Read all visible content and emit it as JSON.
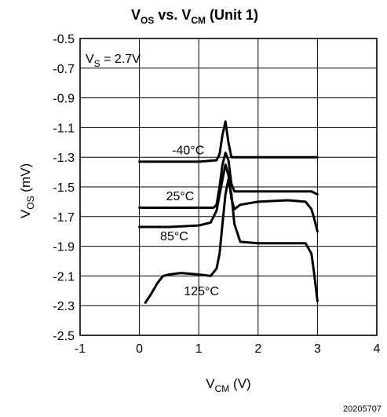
{
  "chart_data": {
    "type": "line",
    "title": {
      "v": "V",
      "v_sub": "OS",
      "mid": " vs. V",
      "cm_sub": "CM",
      "rest": " (Unit 1)"
    },
    "xlabel": {
      "main": "V",
      "sub": "CM",
      "unit": " (V)"
    },
    "ylabel": {
      "main": "V",
      "sub": "OS",
      "unit": " (mV)"
    },
    "xlim": [
      -1,
      4
    ],
    "ylim": [
      -2.5,
      -0.5
    ],
    "xticks": [
      -1,
      0,
      1,
      2,
      3,
      4
    ],
    "yticks": [
      -0.5,
      -0.7,
      -0.9,
      -1.1,
      -1.3,
      -1.5,
      -1.7,
      -1.9,
      -2.1,
      -2.3,
      -2.5
    ],
    "grid": true,
    "annotation": {
      "main": "V",
      "sub": "S",
      "rest": " = 2.7V"
    },
    "series": [
      {
        "name": "-40°C",
        "label_at": [
          0.55,
          -1.28
        ],
        "x": [
          0,
          1.0,
          1.3,
          1.35,
          1.4,
          1.45,
          1.5,
          1.55,
          1.6,
          2.0,
          2.5,
          3.0
        ],
        "y": [
          -1.33,
          -1.33,
          -1.32,
          -1.28,
          -1.15,
          -1.06,
          -1.2,
          -1.3,
          -1.3,
          -1.3,
          -1.3,
          -1.3
        ]
      },
      {
        "name": "25°C",
        "label_at": [
          0.45,
          -1.59
        ],
        "x": [
          0,
          1.0,
          1.25,
          1.3,
          1.35,
          1.4,
          1.45,
          1.5,
          1.55,
          1.6,
          2.0,
          2.5,
          2.9,
          2.95,
          3.0
        ],
        "y": [
          -1.64,
          -1.64,
          -1.64,
          -1.62,
          -1.5,
          -1.35,
          -1.27,
          -1.32,
          -1.48,
          -1.53,
          -1.53,
          -1.53,
          -1.53,
          -1.54,
          -1.55
        ]
      },
      {
        "name": "85°C",
        "label_at": [
          0.35,
          -1.86
        ],
        "x": [
          0,
          0.5,
          1.0,
          1.2,
          1.3,
          1.4,
          1.45,
          1.5,
          1.55,
          1.6,
          1.7,
          2.0,
          2.5,
          2.8,
          2.9,
          2.95,
          3.0
        ],
        "y": [
          -1.77,
          -1.77,
          -1.76,
          -1.74,
          -1.66,
          -1.45,
          -1.35,
          -1.42,
          -1.58,
          -1.65,
          -1.62,
          -1.6,
          -1.59,
          -1.6,
          -1.65,
          -1.72,
          -1.8
        ]
      },
      {
        "name": "125°C",
        "label_at": [
          0.75,
          -2.23
        ],
        "x": [
          0.1,
          0.2,
          0.3,
          0.4,
          0.5,
          0.7,
          1.0,
          1.2,
          1.3,
          1.35,
          1.4,
          1.45,
          1.5,
          1.55,
          1.6,
          1.7,
          2.0,
          2.5,
          2.8,
          2.9,
          2.95,
          3.0
        ],
        "y": [
          -2.28,
          -2.22,
          -2.15,
          -2.1,
          -2.09,
          -2.08,
          -2.09,
          -2.1,
          -2.05,
          -1.95,
          -1.75,
          -1.55,
          -1.45,
          -1.55,
          -1.75,
          -1.87,
          -1.88,
          -1.88,
          -1.88,
          -1.95,
          -2.1,
          -2.27
        ]
      }
    ]
  },
  "figure_id": "20205707"
}
